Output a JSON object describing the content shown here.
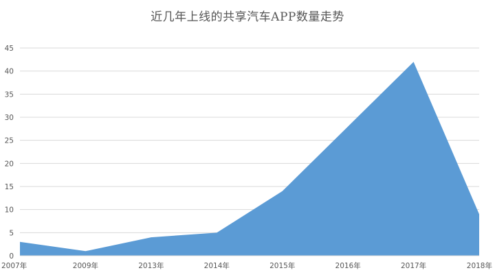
{
  "chart_data": {
    "type": "area",
    "title": "近几年上线的共享汽车APP数量走势",
    "categories": [
      "2007年",
      "2009年",
      "2013年",
      "2014年",
      "2015年",
      "2016年",
      "2017年",
      "2018年"
    ],
    "series": [
      {
        "values": [
          3,
          1,
          4,
          5,
          14,
          28,
          42,
          9
        ]
      }
    ],
    "xlabel": "",
    "ylabel": "",
    "ylim": [
      0,
      45
    ],
    "yticks": [
      "0",
      "5",
      "10",
      "15",
      "20",
      "25",
      "30",
      "35",
      "40",
      "45"
    ],
    "grid": true,
    "legend": "none",
    "colors": {
      "area": "#5b9bd5",
      "grid": "#d9d9d9",
      "text": "#595959"
    }
  }
}
